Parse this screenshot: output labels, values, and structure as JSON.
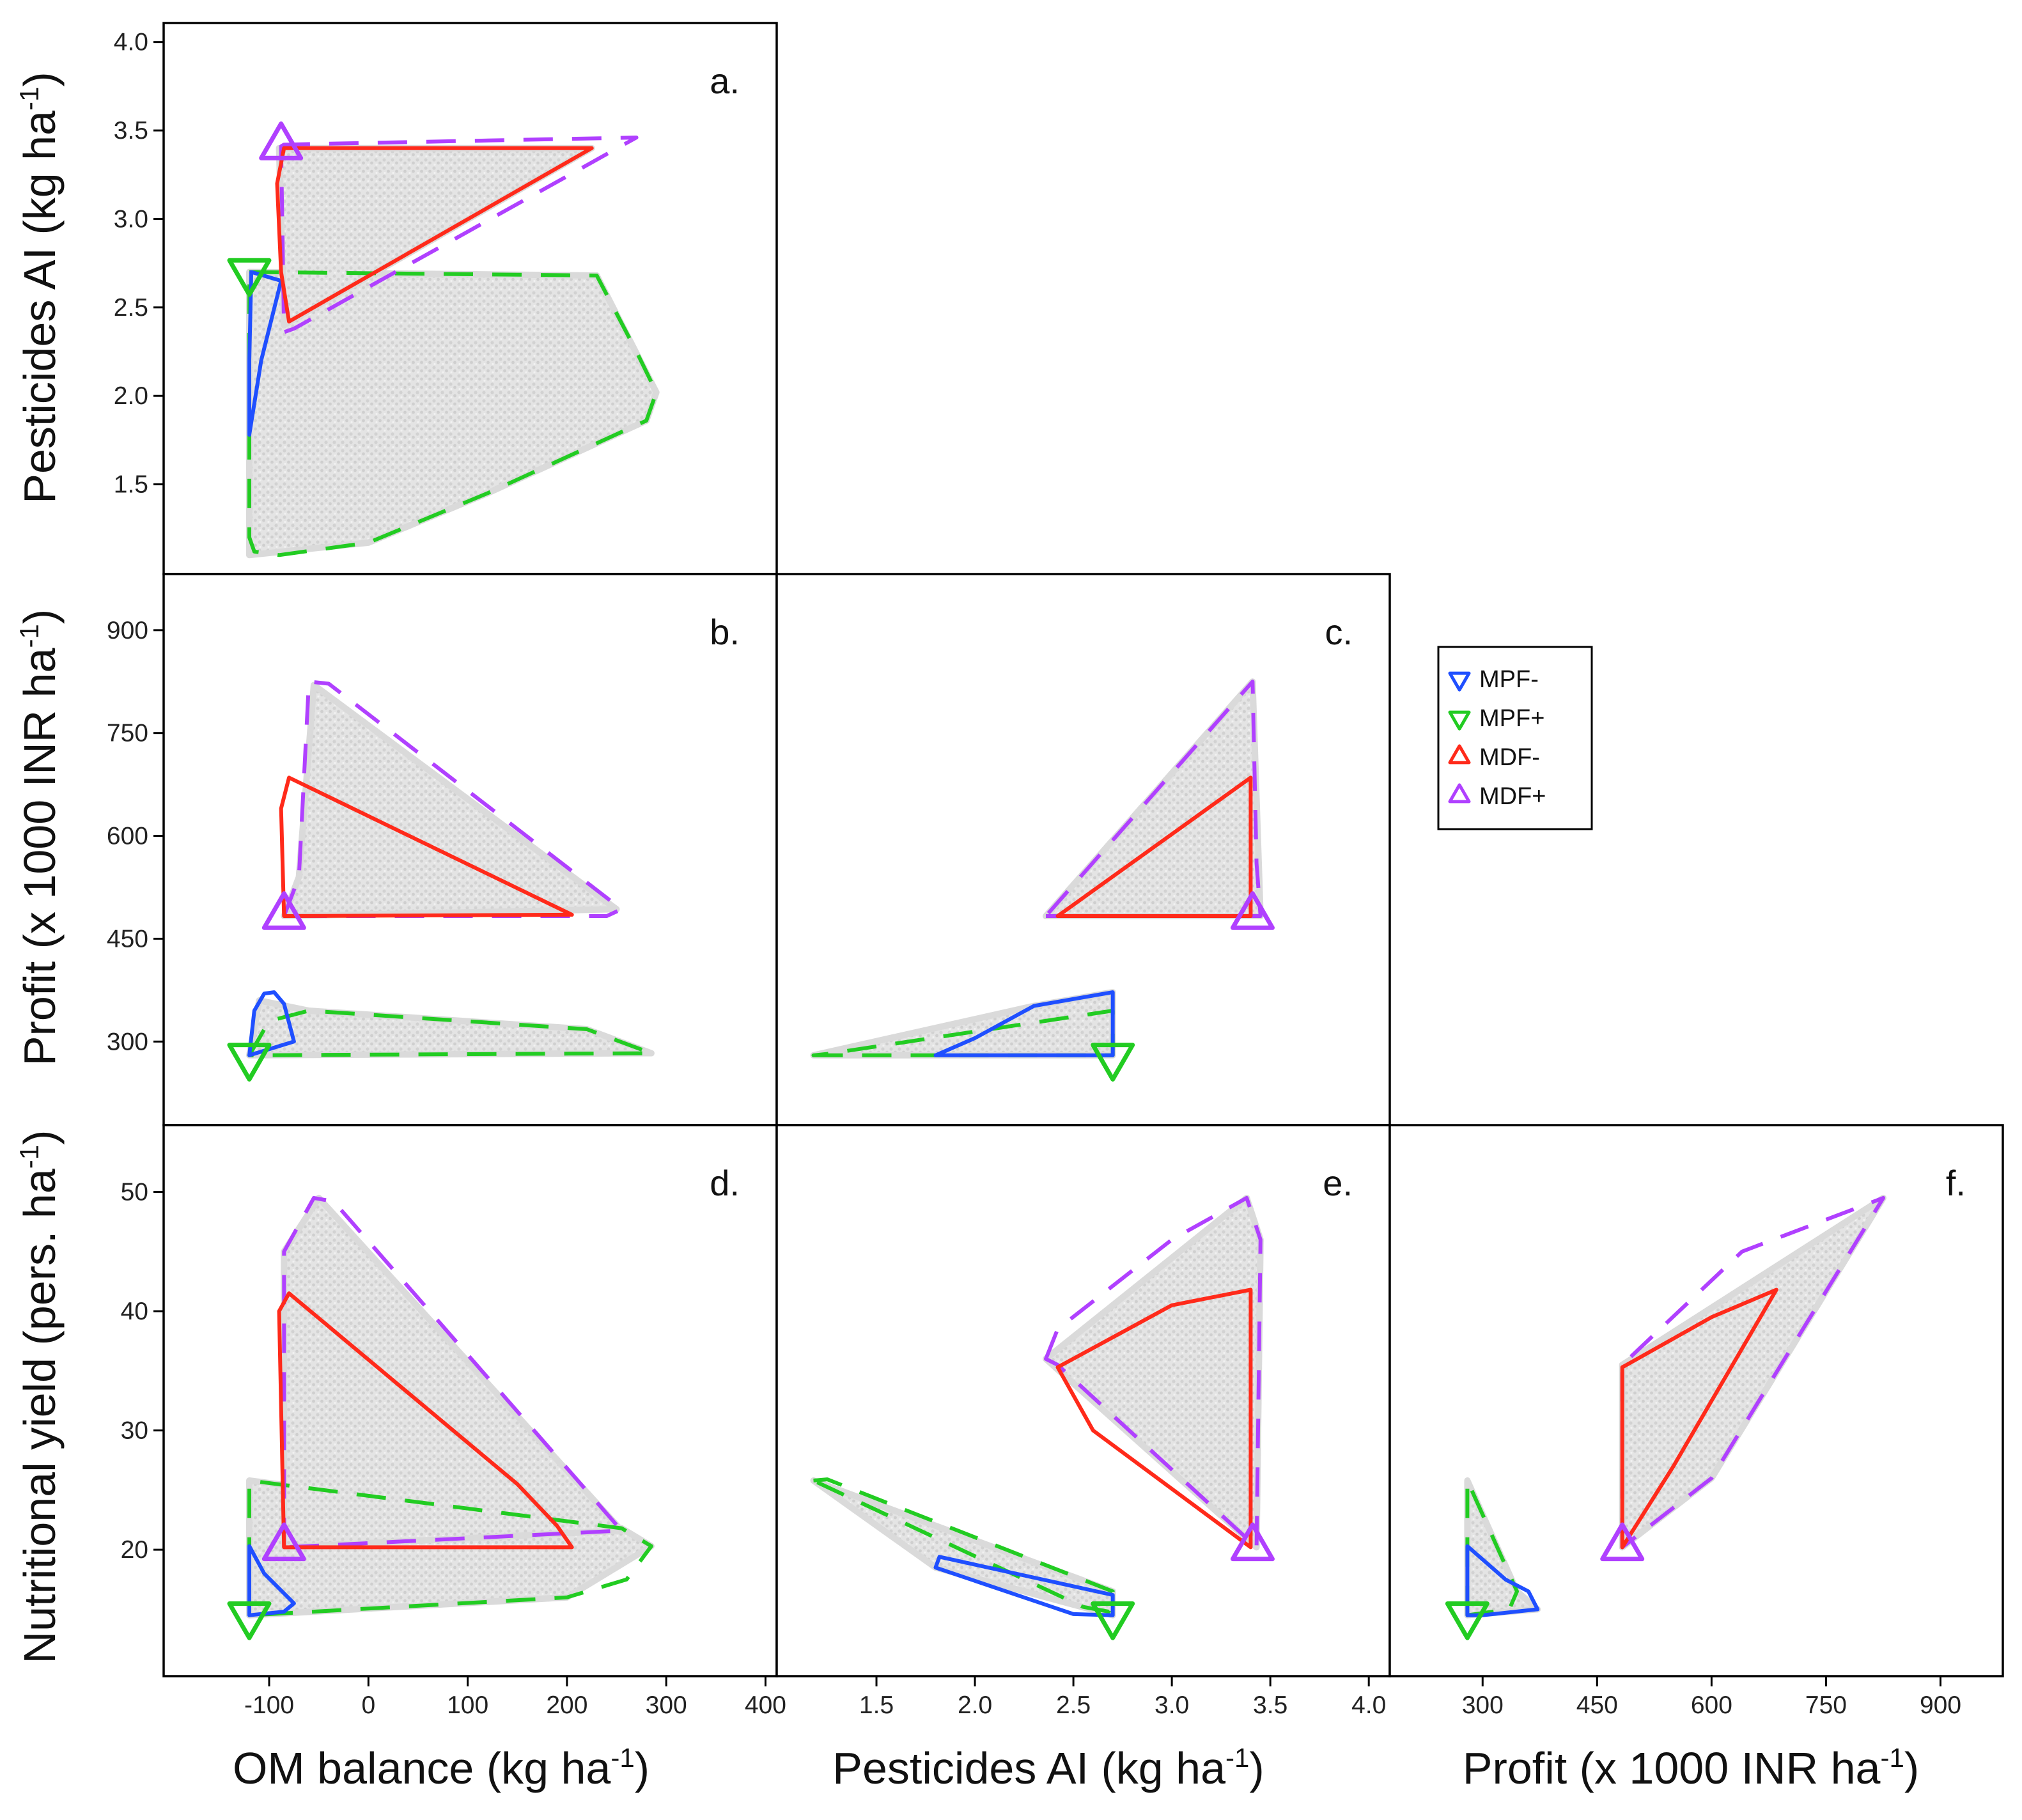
{
  "colors": {
    "MPF-": "#1f4fff",
    "MPF+": "#22cc22",
    "MDF-": "#ff2a1a",
    "MDF+": "#b040ff",
    "cloud": "#d9d9d9",
    "axis": "#000000"
  },
  "legend": [
    {
      "key": "MPF-",
      "label": "MPF-",
      "marker": "triangle-down",
      "line": "solid"
    },
    {
      "key": "MPF+",
      "label": "MPF+",
      "marker": "triangle-down",
      "line": "dashed"
    },
    {
      "key": "MDF-",
      "label": "MDF-",
      "marker": "triangle-up",
      "line": "solid"
    },
    {
      "key": "MDF+",
      "label": "MDF+",
      "marker": "triangle-up",
      "line": "dashed"
    }
  ],
  "axis_titles": {
    "om": {
      "main": "OM balance (kg ha",
      "sup": "-1",
      "end": ")"
    },
    "pest": {
      "main": "Pesticides AI (kg ha",
      "sup": "-1",
      "end": ")"
    },
    "profit": {
      "main": "Profit (x 1000 INR ha",
      "sup": "-1",
      "end": ")"
    },
    "nutr": {
      "main": "Nutritional yield (pers. ha",
      "sup": "-1",
      "end": ")"
    }
  },
  "chart_data": [
    {
      "type": "scatter",
      "panel": "a.",
      "xvar": "om",
      "yvar": "pest",
      "xlabel": "OM balance (kg ha-1)",
      "ylabel": "Pesticides AI (kg ha-1)",
      "xlim": [
        -205,
        410
      ],
      "ylim": [
        1.0,
        4.1
      ],
      "yticks": [
        1.5,
        2.0,
        2.5,
        3.0,
        3.5,
        4.0
      ],
      "ytick_labels": [
        "1.5",
        "2.0",
        "2.5",
        "3.0",
        "3.5",
        "4.0"
      ],
      "hulls": {
        "MPF+": [
          [
            -120,
            2.7
          ],
          [
            230,
            2.68
          ],
          [
            270,
            2.25
          ],
          [
            290,
            2.02
          ],
          [
            280,
            1.86
          ],
          [
            120,
            1.45
          ],
          [
            0,
            1.17
          ],
          [
            -90,
            1.1
          ],
          [
            -115,
            1.12
          ],
          [
            -120,
            1.2
          ],
          [
            -120,
            2.7
          ]
        ],
        "MPF-": [
          [
            -120,
            1.78
          ],
          [
            -108,
            2.2
          ],
          [
            -88,
            2.65
          ],
          [
            -118,
            2.7
          ],
          [
            -120,
            2.2
          ],
          [
            -120,
            1.78
          ]
        ],
        "MDF+": [
          [
            -88,
            3.41
          ],
          [
            -85,
            3.42
          ],
          [
            270,
            3.46
          ],
          [
            -75,
            2.38
          ],
          [
            -85,
            2.36
          ],
          [
            -88,
            3.41
          ]
        ],
        "MDF-": [
          [
            -85,
            3.4
          ],
          [
            225,
            3.4
          ],
          [
            -80,
            2.42
          ],
          [
            -88,
            2.7
          ],
          [
            -92,
            3.2
          ],
          [
            -85,
            3.4
          ]
        ]
      },
      "cloud": [
        [
          [
            -120,
            1.1
          ],
          [
            -120,
            2.7
          ],
          [
            230,
            2.68
          ],
          [
            290,
            2.02
          ],
          [
            280,
            1.86
          ],
          [
            120,
            1.45
          ],
          [
            0,
            1.17
          ]
        ],
        [
          [
            -90,
            3.4
          ],
          [
            225,
            3.4
          ],
          [
            -85,
            2.4
          ]
        ]
      ],
      "markers": [
        {
          "group": "MDF+",
          "shape": "up",
          "x": -88,
          "y": 3.41
        },
        {
          "group": "MPF+",
          "shape": "down",
          "x": -120,
          "y": 2.7
        }
      ]
    },
    {
      "type": "scatter",
      "panel": "b.",
      "xvar": "om",
      "yvar": "profit",
      "xlabel": "OM balance (kg ha-1)",
      "ylabel": "Profit (x 1000 INR ha-1)",
      "xlim": [
        -205,
        410
      ],
      "ylim": [
        180,
        980
      ],
      "yticks": [
        300,
        450,
        600,
        750,
        900
      ],
      "ytick_labels": [
        "300",
        "450",
        "600",
        "750",
        "900"
      ],
      "hulls": {
        "MPF+": [
          [
            -120,
            280
          ],
          [
            -100,
            330
          ],
          [
            -60,
            345
          ],
          [
            220,
            318
          ],
          [
            285,
            283
          ],
          [
            -120,
            280
          ]
        ],
        "MPF-": [
          [
            -120,
            280
          ],
          [
            -115,
            345
          ],
          [
            -105,
            370
          ],
          [
            -95,
            372
          ],
          [
            -85,
            355
          ],
          [
            -75,
            300
          ],
          [
            -120,
            280
          ]
        ],
        "MDF+": [
          [
            -85,
            483
          ],
          [
            -70,
            540
          ],
          [
            -60,
            825
          ],
          [
            -40,
            822
          ],
          [
            255,
            493
          ],
          [
            240,
            483
          ],
          [
            -85,
            483
          ]
        ],
        "MDF-": [
          [
            -85,
            483
          ],
          [
            -88,
            640
          ],
          [
            -80,
            685
          ],
          [
            205,
            485
          ],
          [
            -85,
            483
          ]
        ]
      },
      "cloud": [
        [
          [
            -120,
            280
          ],
          [
            -110,
            360
          ],
          [
            -60,
            345
          ],
          [
            220,
            318
          ],
          [
            285,
            283
          ]
        ],
        [
          [
            -85,
            483
          ],
          [
            -70,
            540
          ],
          [
            -55,
            820
          ],
          [
            250,
            493
          ]
        ]
      ],
      "markers": [
        {
          "group": "MDF+",
          "shape": "up",
          "x": -85,
          "y": 483
        },
        {
          "group": "MPF+",
          "shape": "down",
          "x": -120,
          "y": 278
        }
      ]
    },
    {
      "type": "scatter",
      "panel": "c.",
      "xvar": "pest",
      "yvar": "profit",
      "xlabel": "Pesticides AI (kg ha-1)",
      "ylabel": "Profit (x 1000 INR ha-1)",
      "xlim": [
        1.0,
        4.1
      ],
      "ylim": [
        180,
        980
      ],
      "hulls": {
        "MPF+": [
          [
            1.18,
            280
          ],
          [
            2.7,
            280
          ],
          [
            2.7,
            345
          ],
          [
            1.25,
            282
          ],
          [
            1.18,
            280
          ]
        ],
        "MPF-": [
          [
            1.8,
            280
          ],
          [
            2.7,
            280
          ],
          [
            2.7,
            372
          ],
          [
            2.3,
            352
          ],
          [
            2.0,
            305
          ],
          [
            1.8,
            280
          ]
        ],
        "MDF+": [
          [
            2.36,
            483
          ],
          [
            3.45,
            483
          ],
          [
            3.43,
            560
          ],
          [
            3.41,
            825
          ],
          [
            2.36,
            483
          ]
        ],
        "MDF-": [
          [
            2.42,
            483
          ],
          [
            3.4,
            483
          ],
          [
            3.4,
            685
          ],
          [
            2.42,
            483
          ]
        ]
      },
      "cloud": [
        [
          [
            1.18,
            280
          ],
          [
            2.7,
            280
          ],
          [
            2.7,
            372
          ],
          [
            2.3,
            352
          ]
        ],
        [
          [
            2.36,
            483
          ],
          [
            3.45,
            483
          ],
          [
            3.41,
            825
          ]
        ]
      ],
      "markers": [
        {
          "group": "MDF+",
          "shape": "up",
          "x": 3.41,
          "y": 483
        },
        {
          "group": "MPF+",
          "shape": "down",
          "x": 2.7,
          "y": 278
        }
      ]
    },
    {
      "type": "scatter",
      "panel": "d.",
      "xvar": "om",
      "yvar": "nutr",
      "xlabel": "OM balance (kg ha-1)",
      "ylabel": "Nutritional yield (pers. ha-1)",
      "xlim": [
        -205,
        410
      ],
      "ylim": [
        9.5,
        55.5
      ],
      "yticks": [
        20,
        30,
        40,
        50
      ],
      "ytick_labels": [
        "20",
        "30",
        "40",
        "50"
      ],
      "xticks": [
        -100,
        0,
        100,
        200,
        300,
        400
      ],
      "xtick_labels": [
        "-100",
        "0",
        "100",
        "200",
        "300",
        "400"
      ],
      "hulls": {
        "MPF+": [
          [
            -120,
            14.5
          ],
          [
            -120,
            25.8
          ],
          [
            255,
            21.8
          ],
          [
            285,
            20.3
          ],
          [
            260,
            17.5
          ],
          [
            200,
            16
          ],
          [
            -120,
            14.5
          ]
        ],
        "MPF-": [
          [
            -120,
            14.5
          ],
          [
            -120,
            20.3
          ],
          [
            -105,
            18
          ],
          [
            -75,
            15.5
          ],
          [
            -85,
            14.8
          ],
          [
            -120,
            14.5
          ]
        ],
        "MDF+": [
          [
            -85,
            20.2
          ],
          [
            -85,
            45
          ],
          [
            -55,
            49.5
          ],
          [
            -35,
            49.2
          ],
          [
            255,
            21.6
          ],
          [
            -85,
            20.2
          ]
        ],
        "MDF-": [
          [
            -85,
            20.2
          ],
          [
            205,
            20.2
          ],
          [
            190,
            22
          ],
          [
            150,
            25.5
          ],
          [
            -80,
            41.5
          ],
          [
            -90,
            40
          ],
          [
            -85,
            20.2
          ]
        ]
      },
      "cloud": [
        [
          [
            -120,
            14.5
          ],
          [
            -120,
            25.8
          ],
          [
            255,
            21.8
          ],
          [
            285,
            20.3
          ],
          [
            200,
            16
          ]
        ],
        [
          [
            -85,
            20.2
          ],
          [
            -85,
            45
          ],
          [
            -50,
            49.5
          ],
          [
            255,
            21.6
          ]
        ]
      ],
      "markers": [
        {
          "group": "MDF+",
          "shape": "up",
          "x": -85,
          "y": 20.2
        },
        {
          "group": "MPF+",
          "shape": "down",
          "x": -120,
          "y": 14.5
        }
      ]
    },
    {
      "type": "scatter",
      "panel": "e.",
      "xvar": "pest",
      "yvar": "nutr",
      "xlabel": "Pesticides AI (kg ha-1)",
      "ylabel": "Nutritional yield (pers. ha-1)",
      "xlim": [
        1.0,
        4.1
      ],
      "ylim": [
        9.5,
        55.5
      ],
      "xticks": [
        1.5,
        2.0,
        2.5,
        3.0,
        3.5,
        4.0
      ],
      "xtick_labels": [
        "1.5",
        "2.0",
        "2.5",
        "3.0",
        "3.5",
        "4.0"
      ],
      "hulls": {
        "MPF+": [
          [
            1.18,
            25.8
          ],
          [
            1.25,
            25.9
          ],
          [
            2.7,
            16.5
          ],
          [
            2.68,
            14.8
          ],
          [
            2.55,
            15.2
          ],
          [
            1.18,
            25.8
          ]
        ],
        "MPF-": [
          [
            1.8,
            18.5
          ],
          [
            1.82,
            19.4
          ],
          [
            2.7,
            16.2
          ],
          [
            2.7,
            14.5
          ],
          [
            2.5,
            14.6
          ],
          [
            1.8,
            18.5
          ]
        ],
        "MDF+": [
          [
            2.36,
            36
          ],
          [
            2.42,
            38.5
          ],
          [
            3.0,
            46
          ],
          [
            3.38,
            49.5
          ],
          [
            3.45,
            46
          ],
          [
            3.43,
            20.2
          ],
          [
            2.42,
            35.5
          ],
          [
            2.36,
            36
          ]
        ],
        "MDF-": [
          [
            2.42,
            35.3
          ],
          [
            3.0,
            40.5
          ],
          [
            3.4,
            41.8
          ],
          [
            3.4,
            20.2
          ],
          [
            2.6,
            30
          ],
          [
            2.42,
            35.3
          ]
        ]
      },
      "cloud": [
        [
          [
            1.18,
            25.8
          ],
          [
            2.7,
            16.5
          ],
          [
            2.7,
            14.5
          ],
          [
            1.8,
            18.5
          ]
        ],
        [
          [
            2.36,
            36
          ],
          [
            3.38,
            49.5
          ],
          [
            3.45,
            46
          ],
          [
            3.43,
            20.2
          ]
        ]
      ],
      "markers": [
        {
          "group": "MDF+",
          "shape": "up",
          "x": 3.41,
          "y": 20.2
        },
        {
          "group": "MPF+",
          "shape": "down",
          "x": 2.7,
          "y": 14.5
        }
      ]
    },
    {
      "type": "scatter",
      "panel": "f.",
      "xvar": "profit",
      "yvar": "nutr",
      "xlabel": "Profit (x 1000 INR ha-1)",
      "ylabel": "Nutritional yield (pers. ha-1)",
      "xlim": [
        180,
        980
      ],
      "ylim": [
        9.5,
        55.5
      ],
      "xticks": [
        300,
        450,
        600,
        750,
        900
      ],
      "xtick_labels": [
        "300",
        "450",
        "600",
        "750",
        "900"
      ],
      "hulls": {
        "MPF+": [
          [
            280,
            14.5
          ],
          [
            280,
            25.8
          ],
          [
            345,
            16.5
          ],
          [
            335,
            15
          ],
          [
            280,
            14.5
          ]
        ],
        "MPF-": [
          [
            280,
            14.5
          ],
          [
            280,
            20.3
          ],
          [
            330,
            17.5
          ],
          [
            360,
            16.5
          ],
          [
            372,
            15
          ],
          [
            300,
            14.5
          ],
          [
            280,
            14.5
          ]
        ],
        "MDF+": [
          [
            483,
            20.2
          ],
          [
            483,
            35.5
          ],
          [
            640,
            45
          ],
          [
            825,
            49.5
          ],
          [
            600,
            26
          ],
          [
            483,
            20.2
          ]
        ],
        "MDF-": [
          [
            483,
            20.2
          ],
          [
            483,
            35.3
          ],
          [
            600,
            39.5
          ],
          [
            685,
            41.8
          ],
          [
            550,
            27
          ],
          [
            483,
            20.2
          ]
        ]
      },
      "cloud": [
        [
          [
            280,
            14.5
          ],
          [
            280,
            25.8
          ],
          [
            345,
            16.5
          ],
          [
            372,
            15
          ]
        ],
        [
          [
            483,
            20.2
          ],
          [
            483,
            35.5
          ],
          [
            825,
            49.5
          ],
          [
            600,
            26
          ]
        ]
      ],
      "markers": [
        {
          "group": "MDF+",
          "shape": "up",
          "x": 483,
          "y": 20.2
        },
        {
          "group": "MPF+",
          "shape": "down",
          "x": 280,
          "y": 14.5
        }
      ]
    }
  ]
}
